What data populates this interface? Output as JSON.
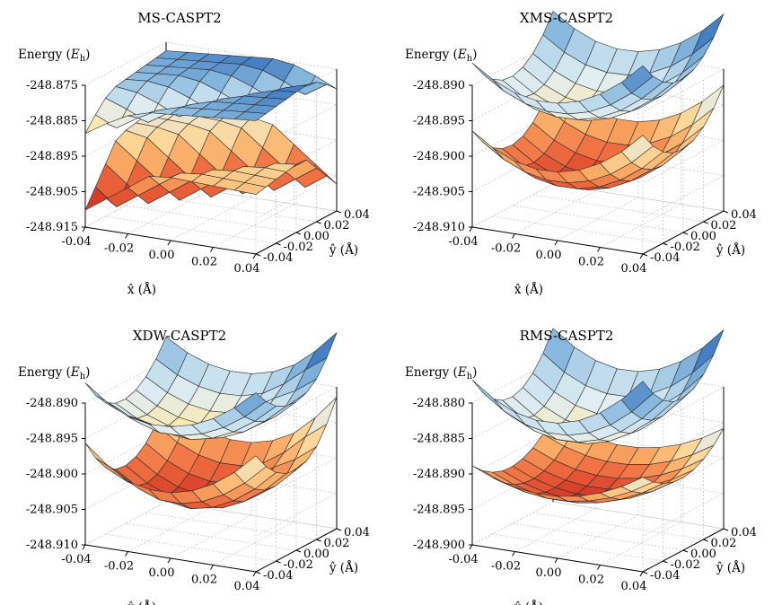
{
  "chart_data": [
    {
      "type": "surface3d",
      "title": "MS-CASPT2",
      "zlabel": "Energy (E_h)",
      "xlabel": "x̂ (Å)",
      "ylabel": "ŷ (Å)",
      "zticks": [
        "-248.875",
        "-248.885",
        "-248.895",
        "-248.905",
        "-248.915"
      ],
      "xticks": [
        "-0.04",
        "-0.02",
        "0.00",
        "0.02",
        "0.04"
      ],
      "yticks": [
        "-0.04",
        "-0.02",
        "0.00",
        "0.02",
        "0.04"
      ],
      "zlim": [
        -248.915,
        -248.875
      ],
      "series": [
        {
          "surface": "upper",
          "estimate": "cusp along diagonal, range ~-248.889 to -248.874"
        },
        {
          "surface": "lower",
          "estimate": "cusp along diagonal, range ~-248.909 to -248.891"
        }
      ]
    },
    {
      "type": "surface3d",
      "title": "XMS-CASPT2",
      "zlabel": "Energy (E_h)",
      "xlabel": "x̂ (Å)",
      "ylabel": "ŷ (Å)",
      "zticks": [
        "-248.890",
        "-248.895",
        "-248.900",
        "-248.905",
        "-248.910"
      ],
      "xticks": [
        "-0.04",
        "-0.02",
        "0.00",
        "0.02",
        "0.04"
      ],
      "yticks": [
        "-0.04",
        "-0.02",
        "0.00",
        "0.02",
        "0.04"
      ],
      "zlim": [
        -248.91,
        -248.89
      ],
      "series": [
        {
          "surface": "upper",
          "estimate": "smooth bowl, ~-248.896 to -248.889"
        },
        {
          "surface": "lower",
          "estimate": "smooth bowl, ~-248.906 to -248.898"
        }
      ]
    },
    {
      "type": "surface3d",
      "title": "XDW-CASPT2",
      "zlabel": "Energy (E_h)",
      "xlabel": "x̂ (Å)",
      "ylabel": "ŷ (Å)",
      "zticks": [
        "-248.890",
        "-248.895",
        "-248.900",
        "-248.905",
        "-248.910"
      ],
      "xticks": [
        "-0.04",
        "-0.02",
        "0.00",
        "0.02",
        "0.04"
      ],
      "yticks": [
        "-0.04",
        "-0.02",
        "0.00",
        "0.02",
        "0.04"
      ],
      "zlim": [
        -248.91,
        -248.89
      ],
      "series": [
        {
          "surface": "upper",
          "estimate": "bowl with small cusp, ~-248.896 to -248.889"
        },
        {
          "surface": "lower",
          "estimate": "bowl with small cusp, ~-248.906 to -248.898"
        }
      ]
    },
    {
      "type": "surface3d",
      "title": "RMS-CASPT2",
      "zlabel": "Energy (E_h)",
      "xlabel": "x̂ (Å)",
      "ylabel": "ŷ (Å)",
      "zticks": [
        "-248.880",
        "-248.885",
        "-248.890",
        "-248.895",
        "-248.900"
      ],
      "xticks": [
        "-0.04",
        "-0.02",
        "0.00",
        "0.02",
        "0.04"
      ],
      "yticks": [
        "-0.04",
        "-0.02",
        "0.00",
        "0.02",
        "0.04"
      ],
      "zlim": [
        -248.9,
        -248.88
      ],
      "series": [
        {
          "surface": "upper",
          "estimate": "smooth bowl, ~-248.887 to -248.880"
        },
        {
          "surface": "lower",
          "estimate": "smooth bowl, ~-248.895 to -248.890"
        }
      ]
    }
  ]
}
